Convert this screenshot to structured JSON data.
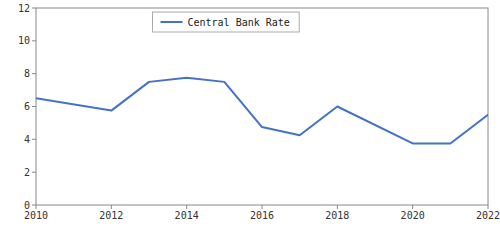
{
  "chart_data": {
    "type": "line",
    "x": [
      2010,
      2012,
      2013,
      2014,
      2015,
      2016,
      2017,
      2018,
      2020,
      2021,
      2022
    ],
    "series": [
      {
        "name": "Central Bank Rate",
        "color": "#4472c4",
        "values": [
          6.5,
          5.75,
          7.5,
          7.75,
          7.5,
          4.75,
          4.25,
          6.0,
          3.75,
          3.75,
          5.5
        ]
      }
    ],
    "xlim": [
      2010,
      2022
    ],
    "ylim": [
      0,
      12
    ],
    "xticks": [
      2010,
      2012,
      2014,
      2016,
      2018,
      2020,
      2022
    ],
    "yticks": [
      0,
      2,
      4,
      6,
      8,
      10,
      12
    ],
    "grid": false,
    "legend": "top"
  }
}
